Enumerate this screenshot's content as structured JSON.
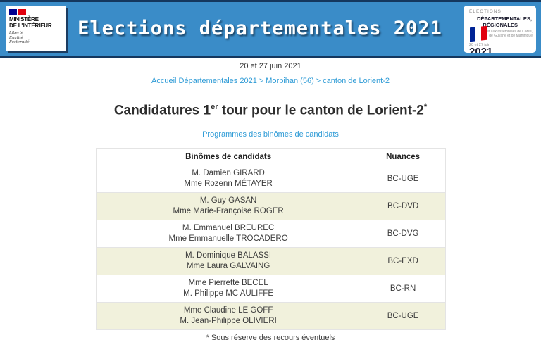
{
  "header": {
    "title": "Elections départementales 2021",
    "ministry_logo": {
      "name_line1": "MINISTÈRE",
      "name_line2": "DE L'INTÉRIEUR",
      "motto_line1": "Liberté",
      "motto_line2": "Égalité",
      "motto_line3": "Fraternité"
    },
    "elections_logo": {
      "line1": "ÉLECTIONS",
      "line2": "DÉPARTEMENTALES,",
      "line3": "RÉGIONALES",
      "sub_line1": "et aux assemblées de Corse,",
      "sub_line2": "de Guyane et de Martinique",
      "dates": "20 et 27 juin",
      "year": "2021"
    }
  },
  "date_line": "20 et 27 juin 2021",
  "breadcrumb": {
    "items": [
      "Accueil Départementales 2021",
      "Morbihan (56)",
      "canton de Lorient-2"
    ],
    "separator": ">"
  },
  "page": {
    "title_prefix": "Candidatures 1",
    "title_sup": "er",
    "title_rest": " tour pour le canton de Lorient-2",
    "title_star": "*",
    "programs_link": "Programmes des binômes de candidats",
    "footnote": "* Sous réserve des recours éventuels"
  },
  "table": {
    "headers": [
      "Binômes de candidats",
      "Nuances"
    ],
    "rows": [
      {
        "line1": "M. Damien GIRARD",
        "line2": "Mme Rozenn MÉTAYER",
        "nuance": "BC-UGE"
      },
      {
        "line1": "M. Guy GASAN",
        "line2": "Mme Marie-Françoise ROGER",
        "nuance": "BC-DVD"
      },
      {
        "line1": "M. Emmanuel BREUREC",
        "line2": "Mme Emmanuelle TROCADERO",
        "nuance": "BC-DVG"
      },
      {
        "line1": "M. Dominique BALASSI",
        "line2": "Mme Laura GALVAING",
        "nuance": "BC-EXD"
      },
      {
        "line1": "Mme Pierrette BECEL",
        "line2": "M. Philippe MC AULIFFE",
        "nuance": "BC-RN"
      },
      {
        "line1": "Mme Claudine LE GOFF",
        "line2": "M. Jean-Philippe OLIVIERI",
        "nuance": "BC-UGE"
      }
    ]
  },
  "colors": {
    "header_blue": "#3a8cc8",
    "header_border": "#14375e",
    "link_blue": "#2e9bd6",
    "row_alt_beige": "#f1f1dc",
    "table_border": "#e4e4e4",
    "flag_blue": "#000091",
    "flag_red": "#e1000f"
  }
}
